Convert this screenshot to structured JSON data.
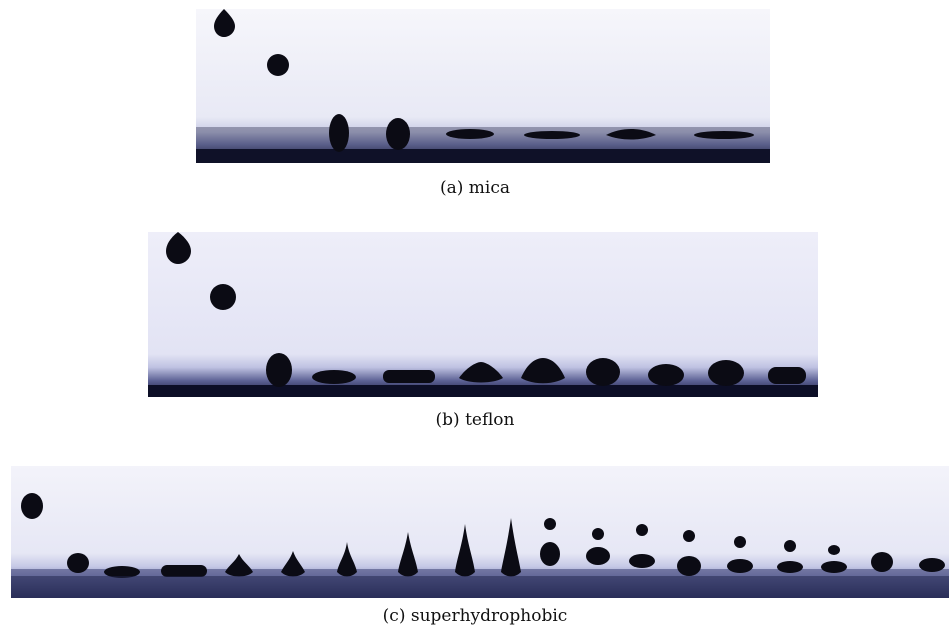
{
  "figure": {
    "panels": [
      {
        "id": "a",
        "caption": "(a) mica"
      },
      {
        "id": "b",
        "caption": "(b) teflon"
      },
      {
        "id": "c",
        "caption": "(c) superhydrophobic"
      }
    ],
    "colors": {
      "background_top": "#f4f4fa",
      "background_mid": "#dcdcef",
      "substrate": "#1a1d3a",
      "drop": "#0b0b14"
    }
  }
}
